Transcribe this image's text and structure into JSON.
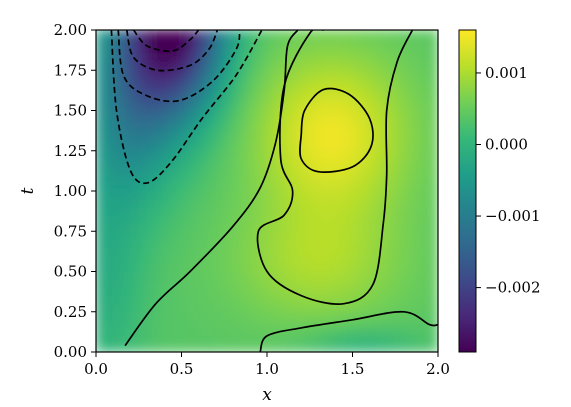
{
  "chart_data": {
    "type": "heatmap",
    "colormap": "viridis",
    "xlabel": "x",
    "ylabel": "t",
    "xlim": [
      0.0,
      2.0
    ],
    "ylim": [
      0.0,
      2.0
    ],
    "xticks": [
      "0.0",
      "0.5",
      "1.0",
      "1.5",
      "2.0"
    ],
    "yticks": [
      "0.00",
      "0.25",
      "0.50",
      "0.75",
      "1.00",
      "1.25",
      "1.50",
      "1.75",
      "2.00"
    ],
    "colorbar": {
      "ticks": [
        "0.001",
        "0.000",
        "−0.001",
        "−0.002"
      ],
      "tick_values": [
        0.001,
        0.0,
        -0.001,
        -0.002
      ],
      "range": [
        -0.0029,
        0.0016
      ]
    },
    "field_features": [
      {
        "kind": "minimum",
        "x": 0.45,
        "t": 1.98,
        "value": -0.0029
      },
      {
        "kind": "maximum",
        "x": 1.38,
        "t": 1.35,
        "value": 0.0015
      },
      {
        "kind": "local_min",
        "x": 1.55,
        "t": 0.08,
        "value": 0.0001
      }
    ],
    "contours": [
      {
        "style": "dashed",
        "points": [
          [
            0.22,
            2.0
          ],
          [
            0.3,
            1.9
          ],
          [
            0.45,
            1.87
          ],
          [
            0.55,
            1.94
          ],
          [
            0.6,
            2.0
          ]
        ]
      },
      {
        "style": "dashed",
        "points": [
          [
            0.18,
            2.0
          ],
          [
            0.22,
            1.83
          ],
          [
            0.36,
            1.75
          ],
          [
            0.55,
            1.78
          ],
          [
            0.66,
            1.88
          ],
          [
            0.71,
            2.0
          ]
        ]
      },
      {
        "style": "dashed",
        "points": [
          [
            0.13,
            2.0
          ],
          [
            0.16,
            1.72
          ],
          [
            0.28,
            1.6
          ],
          [
            0.48,
            1.56
          ],
          [
            0.68,
            1.68
          ],
          [
            0.82,
            1.88
          ],
          [
            0.84,
            2.0
          ]
        ]
      },
      {
        "style": "dashed",
        "points": [
          [
            0.09,
            2.0
          ],
          [
            0.12,
            1.5
          ],
          [
            0.2,
            1.13
          ],
          [
            0.3,
            1.05
          ],
          [
            0.44,
            1.18
          ],
          [
            0.62,
            1.45
          ],
          [
            0.82,
            1.72
          ],
          [
            0.97,
            2.0
          ]
        ]
      },
      {
        "style": "solid",
        "points": [
          [
            0.17,
            0.04
          ],
          [
            0.35,
            0.3
          ],
          [
            0.55,
            0.5
          ],
          [
            0.8,
            0.78
          ],
          [
            0.96,
            1.02
          ],
          [
            1.05,
            1.3
          ],
          [
            1.1,
            1.62
          ],
          [
            1.12,
            1.9
          ],
          [
            1.18,
            2.0
          ]
        ]
      },
      {
        "style": "solid",
        "points": [
          [
            1.85,
            2.0
          ],
          [
            1.76,
            1.8
          ],
          [
            1.7,
            1.5
          ],
          [
            1.7,
            1.1
          ],
          [
            1.68,
            0.8
          ],
          [
            1.62,
            0.42
          ],
          [
            1.45,
            0.3
          ],
          [
            1.2,
            0.35
          ],
          [
            1.0,
            0.5
          ],
          [
            0.95,
            0.75
          ],
          [
            1.1,
            0.85
          ],
          [
            1.15,
            1.0
          ],
          [
            1.08,
            1.2
          ],
          [
            1.1,
            1.65
          ],
          [
            1.25,
            1.98
          ],
          [
            1.33,
            2.0
          ]
        ]
      },
      {
        "style": "solid",
        "points": [
          [
            1.2,
            1.35
          ],
          [
            1.22,
            1.5
          ],
          [
            1.33,
            1.63
          ],
          [
            1.48,
            1.6
          ],
          [
            1.6,
            1.45
          ],
          [
            1.61,
            1.28
          ],
          [
            1.5,
            1.15
          ],
          [
            1.3,
            1.12
          ],
          [
            1.2,
            1.2
          ],
          [
            1.2,
            1.35
          ]
        ]
      },
      {
        "style": "solid",
        "points": [
          [
            0.96,
            0.0
          ],
          [
            1.0,
            0.1
          ],
          [
            1.2,
            0.15
          ],
          [
            1.5,
            0.2
          ],
          [
            1.8,
            0.25
          ],
          [
            1.95,
            0.17
          ],
          [
            2.0,
            0.17
          ]
        ]
      }
    ]
  }
}
